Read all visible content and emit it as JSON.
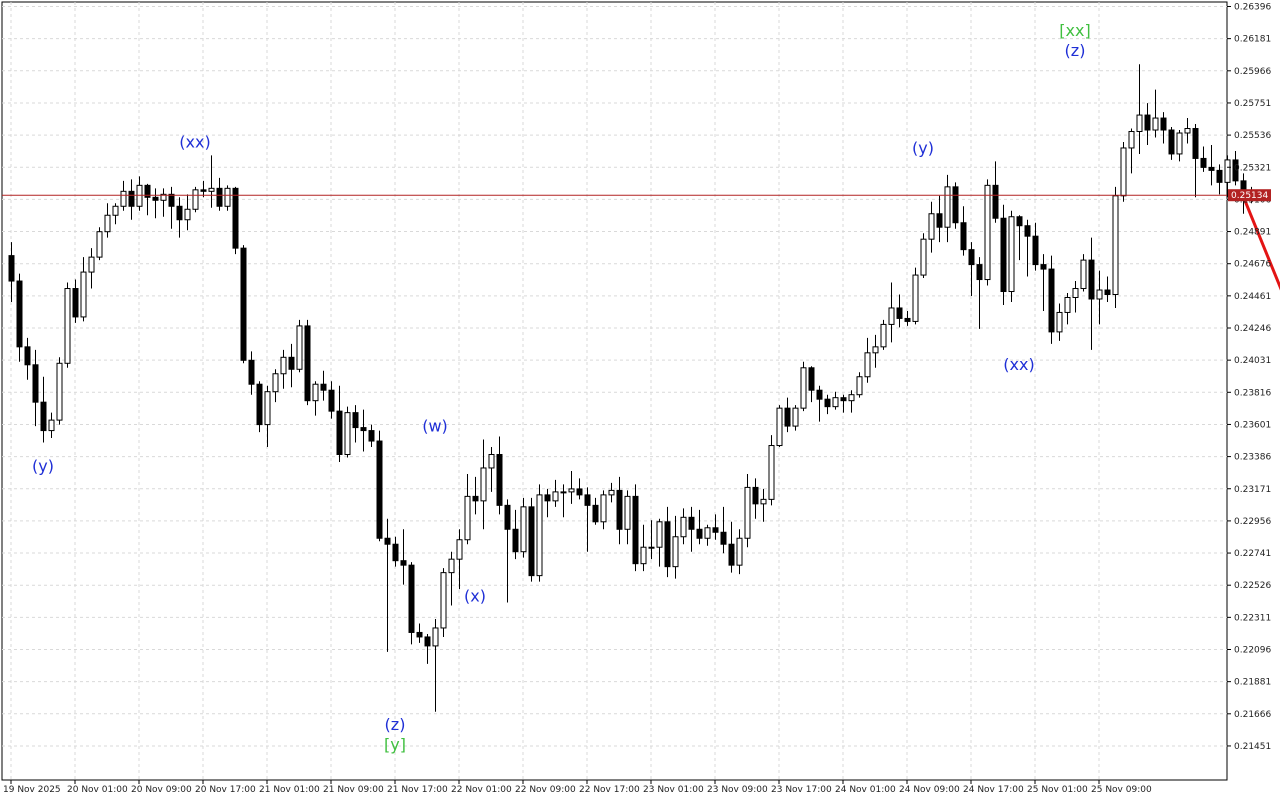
{
  "chart_data": {
    "type": "candlestick",
    "y_ticks": [
      "0.26396",
      "0.26181",
      "0.25966",
      "0.25751",
      "0.25536",
      "0.25321",
      "0.25106",
      "0.24891",
      "0.24676",
      "0.24461",
      "0.24246",
      "0.24031",
      "0.23816",
      "0.23601",
      "0.23386",
      "0.23171",
      "0.22956",
      "0.22741",
      "0.22526",
      "0.22311",
      "0.22096",
      "0.21881",
      "0.21666",
      "0.21451"
    ],
    "y_tick_values": [
      0.26396,
      0.26181,
      0.25966,
      0.25751,
      0.25536,
      0.25321,
      0.25106,
      0.24891,
      0.24676,
      0.24461,
      0.24246,
      0.24031,
      0.23816,
      0.23601,
      0.23386,
      0.23171,
      0.22956,
      0.22741,
      0.22526,
      0.22311,
      0.22096,
      0.21881,
      0.21666,
      0.21451
    ],
    "x_ticks": [
      "19 Nov 2025",
      "20 Nov 01:00",
      "20 Nov 09:00",
      "20 Nov 17:00",
      "21 Nov 01:00",
      "21 Nov 09:00",
      "21 Nov 17:00",
      "22 Nov 01:00",
      "22 Nov 09:00",
      "22 Nov 17:00",
      "23 Nov 01:00",
      "23 Nov 09:00",
      "23 Nov 17:00",
      "24 Nov 01:00",
      "24 Nov 09:00",
      "24 Nov 17:00",
      "25 Nov 01:00",
      "25 Nov 09:00"
    ],
    "x_tick_index": [
      0,
      8,
      16,
      24,
      32,
      40,
      48,
      56,
      64,
      72,
      80,
      88,
      96,
      104,
      112,
      120,
      128,
      136
    ],
    "current_price": "0.25134",
    "current_price_value": 0.25134,
    "colors": {
      "bull_body": "#ffffff",
      "bear_body": "#000000",
      "wick": "#000000",
      "grid": "#d9d9d9",
      "price_line": "#b22222",
      "forecast": "#e31414",
      "wave_blue": "#1f2fd6",
      "wave_green": "#3fbf3f"
    },
    "candles": [
      [
        0.2473,
        0.2482,
        0.2442,
        0.2456
      ],
      [
        0.2456,
        0.2461,
        0.2402,
        0.2412
      ],
      [
        0.2412,
        0.2418,
        0.239,
        0.24
      ],
      [
        0.24,
        0.241,
        0.2359,
        0.2375
      ],
      [
        0.2375,
        0.2392,
        0.2348,
        0.2356
      ],
      [
        0.2356,
        0.2368,
        0.2351,
        0.2363
      ],
      [
        0.2363,
        0.2405,
        0.236,
        0.2401
      ],
      [
        0.2401,
        0.2455,
        0.2398,
        0.2451
      ],
      [
        0.2451,
        0.2457,
        0.2428,
        0.2432
      ],
      [
        0.2432,
        0.2472,
        0.2429,
        0.2462
      ],
      [
        0.2462,
        0.2478,
        0.2451,
        0.2472
      ],
      [
        0.2472,
        0.2492,
        0.247,
        0.2489
      ],
      [
        0.2489,
        0.2508,
        0.2485,
        0.25
      ],
      [
        0.25,
        0.2508,
        0.2494,
        0.2506
      ],
      [
        0.2506,
        0.2523,
        0.2503,
        0.2516
      ],
      [
        0.2516,
        0.2524,
        0.2497,
        0.2506
      ],
      [
        0.2506,
        0.2526,
        0.2503,
        0.252
      ],
      [
        0.252,
        0.2521,
        0.25,
        0.2512
      ],
      [
        0.2512,
        0.2518,
        0.2498,
        0.251
      ],
      [
        0.251,
        0.2518,
        0.2499,
        0.2514
      ],
      [
        0.2514,
        0.2519,
        0.2491,
        0.2506
      ],
      [
        0.2506,
        0.2512,
        0.2485,
        0.2497
      ],
      [
        0.2497,
        0.2514,
        0.249,
        0.2504
      ],
      [
        0.2504,
        0.2519,
        0.2502,
        0.2517
      ],
      [
        0.2517,
        0.2523,
        0.2512,
        0.2516
      ],
      [
        0.2516,
        0.254,
        0.2505,
        0.2518
      ],
      [
        0.2518,
        0.2525,
        0.2503,
        0.2506
      ],
      [
        0.2506,
        0.252,
        0.2503,
        0.2518
      ],
      [
        0.2518,
        0.2519,
        0.2474,
        0.2478
      ],
      [
        0.2478,
        0.248,
        0.2401,
        0.2403
      ],
      [
        0.2403,
        0.2409,
        0.238,
        0.2387
      ],
      [
        0.2387,
        0.2389,
        0.2355,
        0.236
      ],
      [
        0.236,
        0.2386,
        0.2345,
        0.2382
      ],
      [
        0.2382,
        0.2397,
        0.2375,
        0.2394
      ],
      [
        0.2394,
        0.241,
        0.2384,
        0.2405
      ],
      [
        0.2405,
        0.2414,
        0.2385,
        0.2397
      ],
      [
        0.2397,
        0.243,
        0.2395,
        0.2426
      ],
      [
        0.2426,
        0.243,
        0.2373,
        0.2376
      ],
      [
        0.2376,
        0.2389,
        0.2366,
        0.2387
      ],
      [
        0.2387,
        0.2396,
        0.2376,
        0.2383
      ],
      [
        0.2383,
        0.2389,
        0.2364,
        0.2369
      ],
      [
        0.2369,
        0.2386,
        0.2335,
        0.234
      ],
      [
        0.234,
        0.2372,
        0.2338,
        0.2368
      ],
      [
        0.2368,
        0.2373,
        0.2348,
        0.2358
      ],
      [
        0.2358,
        0.237,
        0.2342,
        0.2356
      ],
      [
        0.2356,
        0.236,
        0.2345,
        0.2349
      ],
      [
        0.2349,
        0.2356,
        0.2282,
        0.2284
      ],
      [
        0.2284,
        0.2297,
        0.2208,
        0.228
      ],
      [
        0.228,
        0.2285,
        0.2265,
        0.2269
      ],
      [
        0.2269,
        0.229,
        0.2253,
        0.2266
      ],
      [
        0.2266,
        0.2268,
        0.2213,
        0.2221
      ],
      [
        0.2221,
        0.2227,
        0.2214,
        0.2218
      ],
      [
        0.2218,
        0.222,
        0.22,
        0.2212
      ],
      [
        0.2212,
        0.223,
        0.2168,
        0.2224
      ],
      [
        0.2224,
        0.2264,
        0.2218,
        0.2261
      ],
      [
        0.2261,
        0.2275,
        0.2239,
        0.227
      ],
      [
        0.227,
        0.229,
        0.225,
        0.2283
      ],
      [
        0.2283,
        0.2327,
        0.228,
        0.2312
      ],
      [
        0.2312,
        0.2325,
        0.23,
        0.2309
      ],
      [
        0.2309,
        0.235,
        0.229,
        0.2331
      ],
      [
        0.2331,
        0.2345,
        0.2315,
        0.234
      ],
      [
        0.234,
        0.2352,
        0.23,
        0.2306
      ],
      [
        0.2306,
        0.231,
        0.2241,
        0.229
      ],
      [
        0.229,
        0.2303,
        0.227,
        0.2275
      ],
      [
        0.2275,
        0.2311,
        0.2271,
        0.2305
      ],
      [
        0.2305,
        0.2311,
        0.2255,
        0.2259
      ],
      [
        0.2259,
        0.232,
        0.2255,
        0.2313
      ],
      [
        0.2313,
        0.2317,
        0.2298,
        0.2309
      ],
      [
        0.2309,
        0.2323,
        0.2305,
        0.2315
      ],
      [
        0.2315,
        0.232,
        0.2298,
        0.2315
      ],
      [
        0.2315,
        0.2329,
        0.2307,
        0.2317
      ],
      [
        0.2317,
        0.2324,
        0.231,
        0.2313
      ],
      [
        0.2313,
        0.2318,
        0.2275,
        0.2306
      ],
      [
        0.2306,
        0.2311,
        0.2293,
        0.2295
      ],
      [
        0.2295,
        0.2316,
        0.229,
        0.2313
      ],
      [
        0.2313,
        0.2321,
        0.2308,
        0.2316
      ],
      [
        0.2316,
        0.2325,
        0.228,
        0.229
      ],
      [
        0.229,
        0.2316,
        0.228,
        0.2312
      ],
      [
        0.2312,
        0.232,
        0.2262,
        0.2267
      ],
      [
        0.2267,
        0.2293,
        0.2262,
        0.2278
      ],
      [
        0.2278,
        0.2296,
        0.227,
        0.2278
      ],
      [
        0.2278,
        0.2297,
        0.2265,
        0.2295
      ],
      [
        0.2295,
        0.2305,
        0.2258,
        0.2265
      ],
      [
        0.2265,
        0.2299,
        0.2257,
        0.2285
      ],
      [
        0.2285,
        0.2304,
        0.228,
        0.2298
      ],
      [
        0.2298,
        0.2305,
        0.2275,
        0.229
      ],
      [
        0.229,
        0.2303,
        0.228,
        0.2284
      ],
      [
        0.2284,
        0.2293,
        0.2279,
        0.2291
      ],
      [
        0.2291,
        0.23,
        0.2283,
        0.2288
      ],
      [
        0.2288,
        0.2305,
        0.2274,
        0.228
      ],
      [
        0.228,
        0.2295,
        0.2261,
        0.2266
      ],
      [
        0.2266,
        0.229,
        0.226,
        0.2284
      ],
      [
        0.2284,
        0.2327,
        0.2278,
        0.2318
      ],
      [
        0.2318,
        0.2324,
        0.2297,
        0.2307
      ],
      [
        0.2307,
        0.2317,
        0.2295,
        0.231
      ],
      [
        0.231,
        0.2353,
        0.2306,
        0.2346
      ],
      [
        0.2346,
        0.2373,
        0.2345,
        0.2371
      ],
      [
        0.2371,
        0.2378,
        0.2355,
        0.2359
      ],
      [
        0.2359,
        0.2373,
        0.2356,
        0.2371
      ],
      [
        0.2371,
        0.2402,
        0.2369,
        0.2398
      ],
      [
        0.2398,
        0.2399,
        0.2375,
        0.2383
      ],
      [
        0.2383,
        0.2386,
        0.2362,
        0.2377
      ],
      [
        0.2377,
        0.238,
        0.2367,
        0.2372
      ],
      [
        0.2372,
        0.2382,
        0.237,
        0.2378
      ],
      [
        0.2378,
        0.238,
        0.2368,
        0.2376
      ],
      [
        0.2376,
        0.2383,
        0.2368,
        0.238
      ],
      [
        0.238,
        0.2395,
        0.2378,
        0.2392
      ],
      [
        0.2392,
        0.2418,
        0.2388,
        0.2408
      ],
      [
        0.2408,
        0.242,
        0.2398,
        0.2412
      ],
      [
        0.2412,
        0.243,
        0.241,
        0.2427
      ],
      [
        0.2427,
        0.2455,
        0.2415,
        0.2438
      ],
      [
        0.2438,
        0.2447,
        0.2425,
        0.2431
      ],
      [
        0.2431,
        0.2436,
        0.2426,
        0.2429
      ],
      [
        0.2429,
        0.2465,
        0.2427,
        0.246
      ],
      [
        0.246,
        0.2488,
        0.2458,
        0.2484
      ],
      [
        0.2484,
        0.2509,
        0.2475,
        0.2501
      ],
      [
        0.2501,
        0.2513,
        0.2482,
        0.2492
      ],
      [
        0.2492,
        0.2527,
        0.2482,
        0.2519
      ],
      [
        0.2519,
        0.2522,
        0.2491,
        0.2495
      ],
      [
        0.2495,
        0.2506,
        0.2473,
        0.2477
      ],
      [
        0.2477,
        0.2482,
        0.2446,
        0.2467
      ],
      [
        0.2467,
        0.2472,
        0.2424,
        0.2457
      ],
      [
        0.2457,
        0.2524,
        0.2453,
        0.252
      ],
      [
        0.252,
        0.2536,
        0.2495,
        0.2498
      ],
      [
        0.2498,
        0.2507,
        0.244,
        0.2449
      ],
      [
        0.2449,
        0.2503,
        0.2442,
        0.2499
      ],
      [
        0.2499,
        0.25,
        0.247,
        0.2493
      ],
      [
        0.2493,
        0.2497,
        0.2459,
        0.2486
      ],
      [
        0.2486,
        0.2495,
        0.2463,
        0.2467
      ],
      [
        0.2467,
        0.2474,
        0.2436,
        0.2464
      ],
      [
        0.2464,
        0.2473,
        0.2414,
        0.2422
      ],
      [
        0.2422,
        0.2441,
        0.2416,
        0.2435
      ],
      [
        0.2435,
        0.2448,
        0.2427,
        0.2445
      ],
      [
        0.2445,
        0.2456,
        0.2435,
        0.2451
      ],
      [
        0.2451,
        0.2474,
        0.2449,
        0.247
      ],
      [
        0.247,
        0.2485,
        0.241,
        0.2444
      ],
      [
        0.2444,
        0.2463,
        0.2427,
        0.245
      ],
      [
        0.245,
        0.2459,
        0.2442,
        0.2447
      ],
      [
        0.2447,
        0.2519,
        0.2438,
        0.2513
      ],
      [
        0.2513,
        0.2549,
        0.2509,
        0.2545
      ],
      [
        0.2545,
        0.2558,
        0.2528,
        0.2556
      ],
      [
        0.2556,
        0.2601,
        0.2541,
        0.2567
      ],
      [
        0.2567,
        0.2575,
        0.2547,
        0.2557
      ],
      [
        0.2557,
        0.2584,
        0.2552,
        0.2565
      ],
      [
        0.2565,
        0.2569,
        0.2548,
        0.2557
      ],
      [
        0.2557,
        0.2559,
        0.2537,
        0.2541
      ],
      [
        0.2541,
        0.2557,
        0.2536,
        0.2555
      ],
      [
        0.2555,
        0.2565,
        0.2548,
        0.2558
      ],
      [
        0.2558,
        0.2561,
        0.2512,
        0.2538
      ],
      [
        0.2538,
        0.2546,
        0.2529,
        0.2532
      ],
      [
        0.2532,
        0.2547,
        0.252,
        0.253
      ],
      [
        0.253,
        0.2534,
        0.2514,
        0.2522
      ],
      [
        0.2522,
        0.254,
        0.2512,
        0.2537
      ],
      [
        0.2537,
        0.2543,
        0.252,
        0.2523
      ],
      [
        0.2523,
        0.2528,
        0.2501,
        0.2515
      ],
      [
        0.2515,
        0.2519,
        0.2508,
        0.2513
      ]
    ],
    "forecast_line": {
      "from": [
        154,
        0.2513
      ],
      "to": [
        162,
        0.2408
      ]
    },
    "wave_labels": [
      {
        "text": "(y)",
        "index": 4,
        "price": 0.2342,
        "pos": "below",
        "color": "blue"
      },
      {
        "text": "(xx)",
        "index": 23,
        "price": 0.254,
        "pos": "above",
        "color": "blue"
      },
      {
        "text": "(w)",
        "index": 53,
        "price": 0.235,
        "pos": "above",
        "color": "blue"
      },
      {
        "text": "(x)",
        "index": 58,
        "price": 0.2255,
        "pos": "below",
        "color": "blue"
      },
      {
        "text": "(z)",
        "index": 48,
        "price": 0.2169,
        "pos": "below",
        "color": "blue"
      },
      {
        "text": "[y]",
        "index": 48,
        "price": 0.2169,
        "pos": "below2",
        "color": "green"
      },
      {
        "text": "(y)",
        "index": 114,
        "price": 0.2536,
        "pos": "above",
        "color": "blue"
      },
      {
        "text": "(xx)",
        "index": 126,
        "price": 0.241,
        "pos": "below",
        "color": "blue"
      },
      {
        "text": "(z)",
        "index": 133,
        "price": 0.2601,
        "pos": "above",
        "color": "blue"
      },
      {
        "text": "[xx]",
        "index": 133,
        "price": 0.2601,
        "pos": "above2",
        "color": "green"
      }
    ],
    "y_min": 0.21451,
    "y_max": 0.26396,
    "xlabel": "",
    "ylabel": ""
  }
}
